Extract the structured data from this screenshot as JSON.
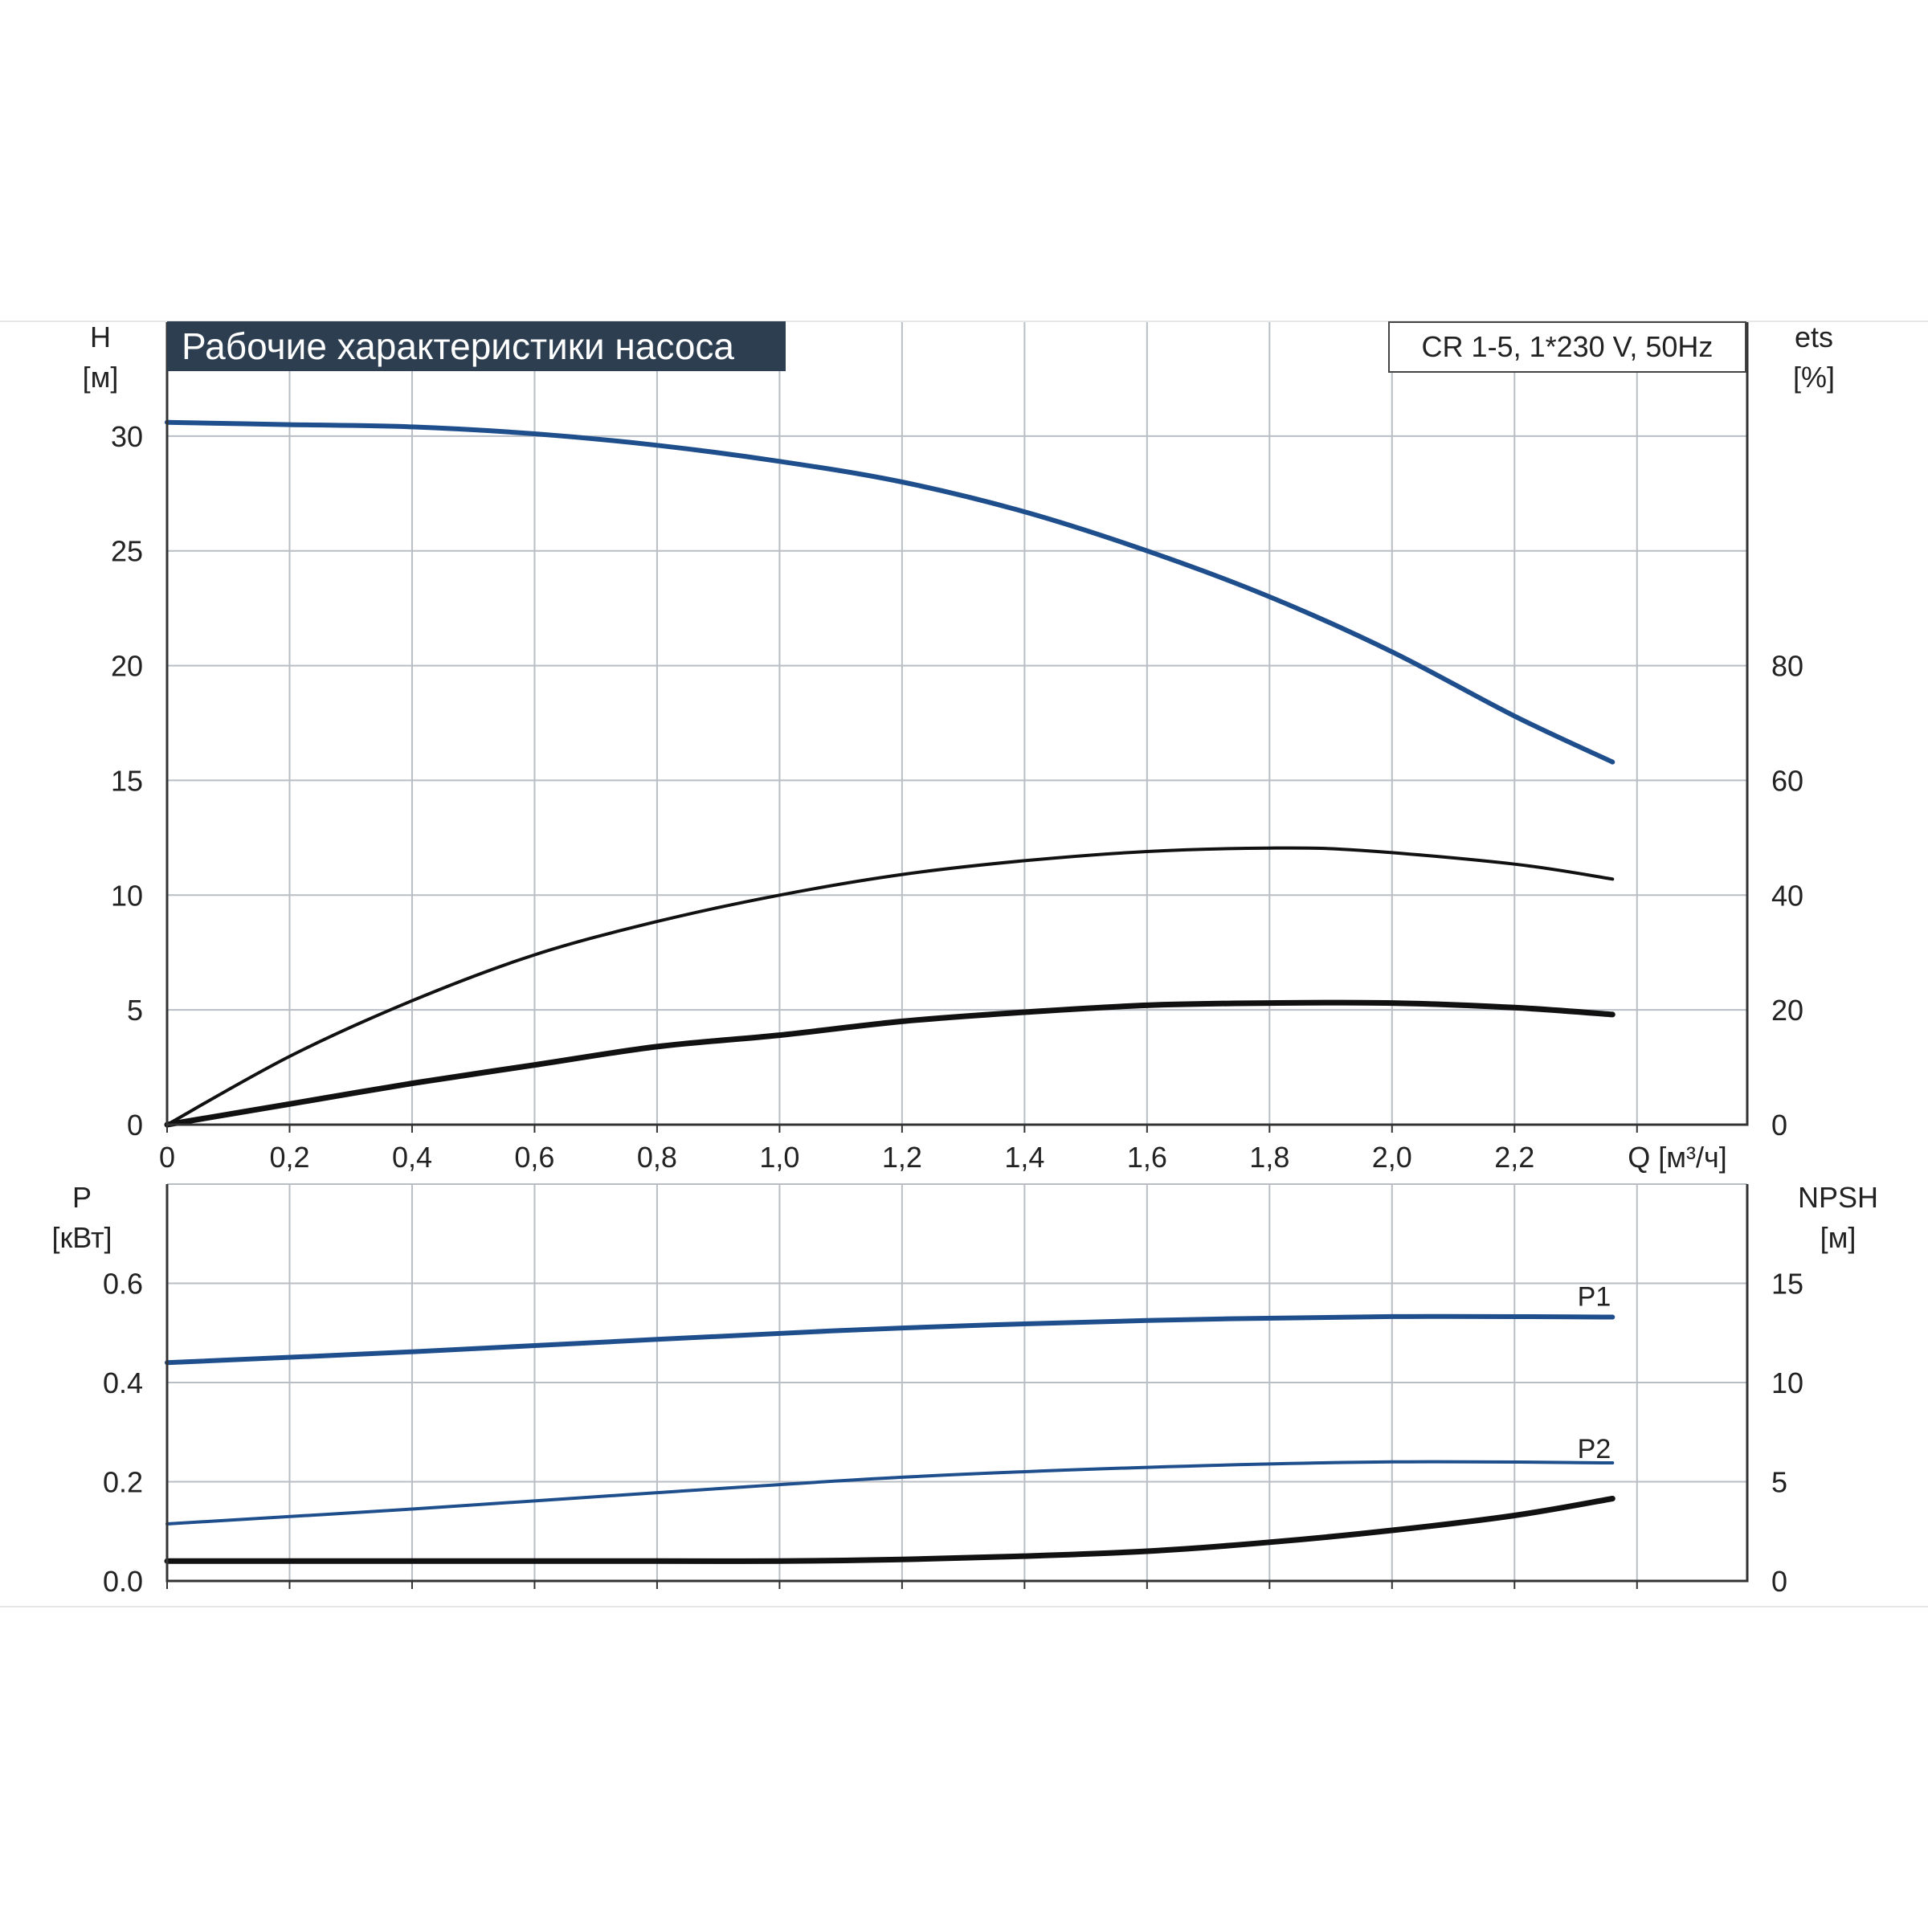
{
  "header": {
    "title": "Рабочие характеристики насоса",
    "model": "CR 1-5, 1*230 V, 50Hz"
  },
  "chart_data": [
    {
      "type": "line",
      "panel": "upper",
      "title": "Рабочие характеристики насоса",
      "xlabel": "Q [м³/ч]",
      "ylabel": "H\n[м]",
      "y2label": "ets\n[%]",
      "x_ticks": [
        "0",
        "0,2",
        "0,4",
        "0,6",
        "0,8",
        "1,0",
        "1,2",
        "1,4",
        "1,6",
        "1,8",
        "2,0",
        "2,2"
      ],
      "y_ticks": [
        "0",
        "5",
        "10",
        "15",
        "20",
        "25",
        "30"
      ],
      "y2_ticks": [
        "0",
        "20",
        "40",
        "60",
        "80"
      ],
      "xlim": [
        0,
        2.58
      ],
      "ylim": [
        0,
        35
      ],
      "y2lim": [
        0,
        140
      ],
      "grid": true,
      "series": [
        {
          "axis": "left",
          "color": "#1f4e8c",
          "points": [
            [
              0,
              30.6
            ],
            [
              0.2,
              30.5
            ],
            [
              0.4,
              30.4
            ],
            [
              0.6,
              30.1
            ],
            [
              0.8,
              29.6
            ],
            [
              1.0,
              28.9
            ],
            [
              1.2,
              28.0
            ],
            [
              1.4,
              26.7
            ],
            [
              1.6,
              25.0
            ],
            [
              1.8,
              23.0
            ],
            [
              2.0,
              20.6
            ],
            [
              2.2,
              17.8
            ],
            [
              2.36,
              15.8
            ]
          ]
        },
        {
          "axis": "right",
          "color": "#111111",
          "points": [
            [
              0,
              0
            ],
            [
              0.2,
              11.9
            ],
            [
              0.4,
              21.6
            ],
            [
              0.6,
              29.6
            ],
            [
              0.8,
              35.4
            ],
            [
              1.0,
              40.0
            ],
            [
              1.2,
              43.6
            ],
            [
              1.4,
              46.0
            ],
            [
              1.6,
              47.6
            ],
            [
              1.8,
              48.2
            ],
            [
              1.95,
              47.8
            ],
            [
              2.2,
              45.4
            ],
            [
              2.36,
              42.8
            ]
          ]
        },
        {
          "axis": "left",
          "color": "#111111",
          "points": [
            [
              0,
              0
            ],
            [
              0.2,
              0.9
            ],
            [
              0.4,
              1.8
            ],
            [
              0.6,
              2.6
            ],
            [
              0.8,
              3.4
            ],
            [
              1.0,
              3.9
            ],
            [
              1.2,
              4.5
            ],
            [
              1.4,
              4.9
            ],
            [
              1.6,
              5.2
            ],
            [
              1.8,
              5.3
            ],
            [
              2.0,
              5.3
            ],
            [
              2.2,
              5.1
            ],
            [
              2.36,
              4.8
            ]
          ]
        }
      ]
    },
    {
      "type": "line",
      "panel": "lower",
      "ylabel": "P\n[кВт]",
      "y2label": "NPSH\n[м]",
      "y_ticks": [
        "0.0",
        "0.2",
        "0.4",
        "0.6"
      ],
      "y2_ticks": [
        "0",
        "5",
        "10",
        "15"
      ],
      "xlim": [
        0,
        2.58
      ],
      "ylim": [
        0,
        0.8
      ],
      "y2lim": [
        0,
        20
      ],
      "grid": true,
      "series": [
        {
          "name": "P1",
          "axis": "left",
          "color": "#1f4e8c",
          "points": [
            [
              0,
              0.44
            ],
            [
              0.4,
              0.462
            ],
            [
              0.8,
              0.487
            ],
            [
              1.2,
              0.51
            ],
            [
              1.6,
              0.525
            ],
            [
              2.0,
              0.533
            ],
            [
              2.36,
              0.532
            ]
          ]
        },
        {
          "name": "P2",
          "axis": "left",
          "color": "#1f4e8c",
          "points": [
            [
              0,
              0.115
            ],
            [
              0.4,
              0.145
            ],
            [
              0.8,
              0.178
            ],
            [
              1.2,
              0.209
            ],
            [
              1.6,
              0.229
            ],
            [
              2.0,
              0.24
            ],
            [
              2.36,
              0.238
            ]
          ]
        },
        {
          "axis": "right",
          "color": "#111111",
          "points": [
            [
              0,
              1.0
            ],
            [
              0.4,
              1.0
            ],
            [
              0.8,
              1.0
            ],
            [
              1.0,
              1.0
            ],
            [
              1.2,
              1.08
            ],
            [
              1.4,
              1.25
            ],
            [
              1.6,
              1.5
            ],
            [
              1.8,
              1.95
            ],
            [
              2.0,
              2.55
            ],
            [
              2.2,
              3.3
            ],
            [
              2.36,
              4.15
            ]
          ]
        }
      ]
    }
  ]
}
